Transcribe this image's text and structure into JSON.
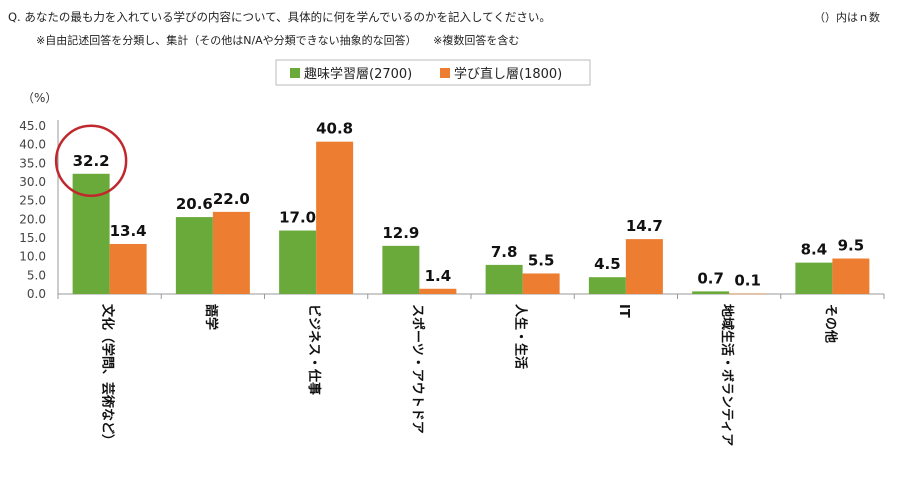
{
  "header": {
    "question": "Q. あなたの最も力を入れている学びの内容について、具体的に何を学んでいるのかを記入してください。",
    "note": "※自由記述回答を分類し、集計（その他はN/Aや分類できない抽象的な回答）　　※複数回答を含む",
    "n_note": "（）内はｎ数"
  },
  "chart_data": {
    "type": "bar",
    "ylabel": "（%）",
    "ylim": [
      0,
      45
    ],
    "yticks": [
      "45.0",
      "40.0",
      "35.0",
      "30.0",
      "25.0",
      "20.0",
      "15.0",
      "10.0",
      "5.0",
      "0.0"
    ],
    "categories": [
      "文化（学問、芸術など）",
      "語学",
      "ビジネス・仕事",
      "スポーツ・アウトドア",
      "人生・生活",
      "IT",
      "地域生活・ボランティア",
      "その他"
    ],
    "series": [
      {
        "name": "趣味学習層(2700)",
        "color": "#6aaa3a",
        "values": [
          32.2,
          20.6,
          17.0,
          12.9,
          7.8,
          4.5,
          0.7,
          8.4
        ],
        "labels": [
          "32.2",
          "20.6",
          "17.0",
          "12.9",
          "7.8",
          "4.5",
          "0.7",
          "8.4"
        ]
      },
      {
        "name": "学び直し層(1800)",
        "color": "#ed7d31",
        "values": [
          13.4,
          22.0,
          40.8,
          1.4,
          5.5,
          14.7,
          0.1,
          9.5
        ],
        "labels": [
          "13.4",
          "22.0",
          "40.8",
          "1.4",
          "5.5",
          "14.7",
          "0.1",
          "9.5"
        ]
      }
    ],
    "highlight": {
      "category": "文化（学問、芸術など）",
      "series": "趣味学習層(2700)",
      "color": "#c0282d"
    },
    "legend_position": "top-center"
  }
}
